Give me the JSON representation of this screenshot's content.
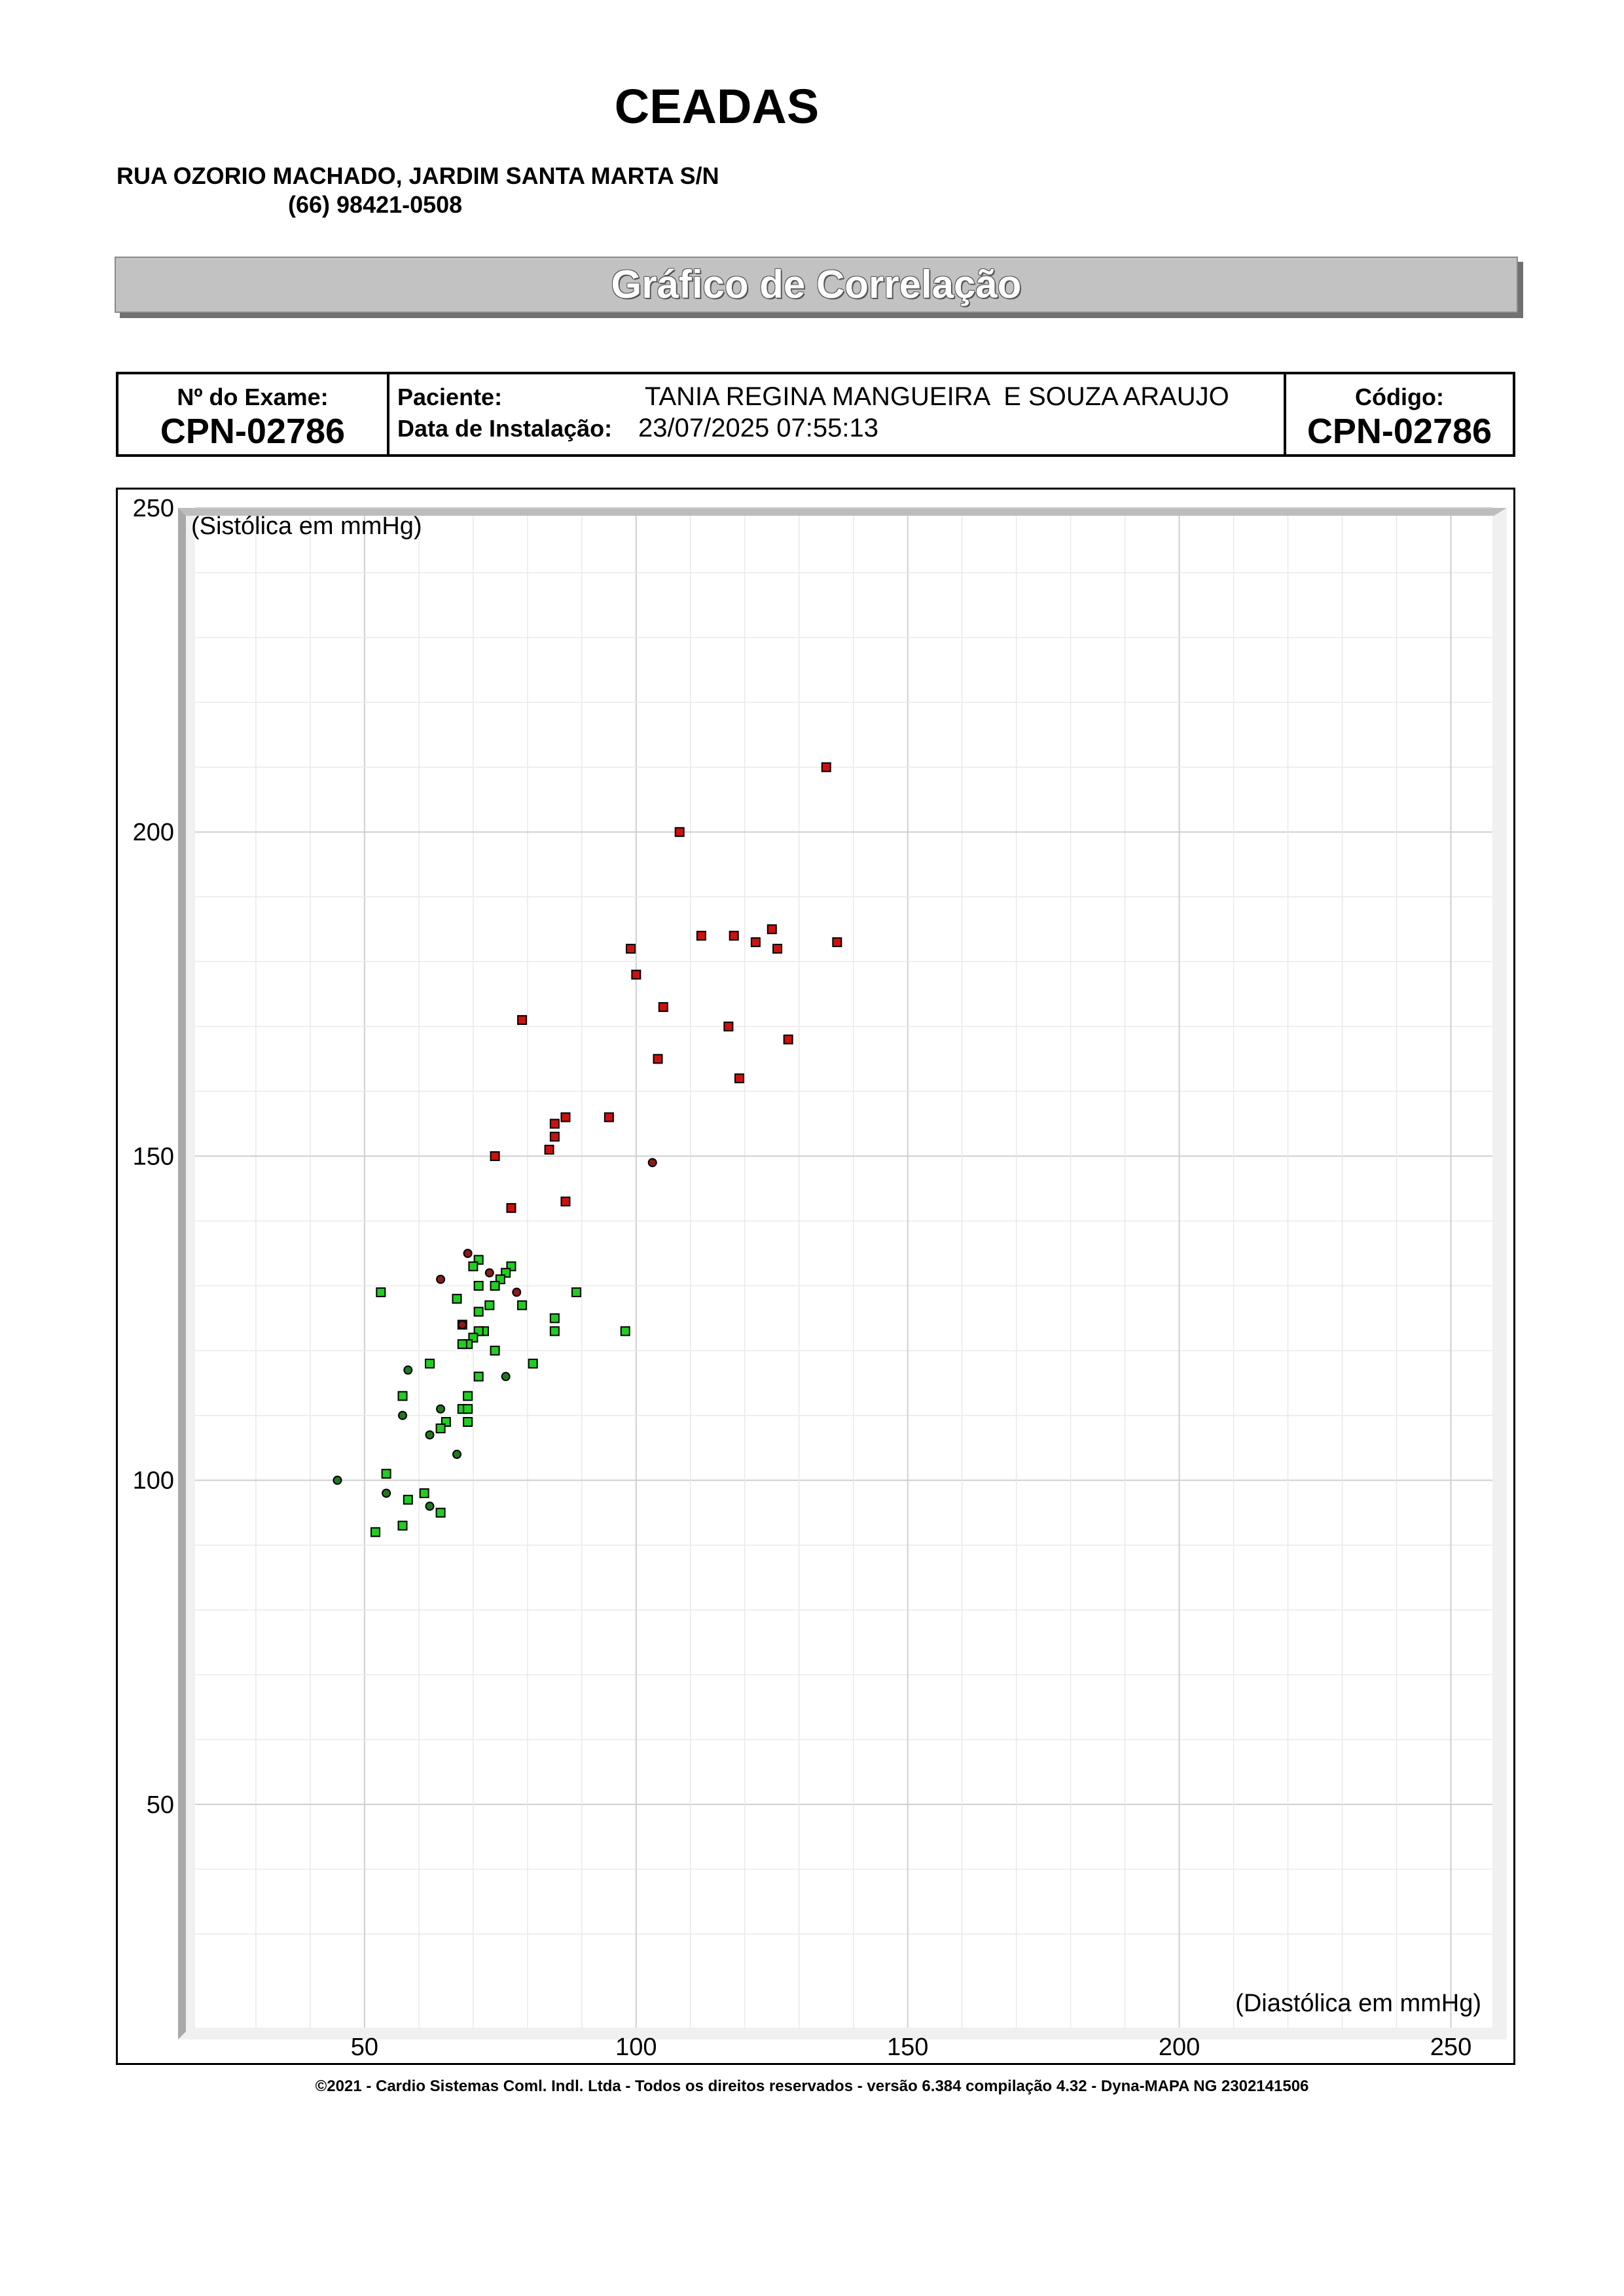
{
  "header": {
    "clinic_name": "CEADAS",
    "address": "RUA OZORIO MACHADO, JARDIM SANTA MARTA S/N",
    "phone": "(66) 98421-0508"
  },
  "title": "Gráfico de Correlação",
  "exam": {
    "exam_label": "Nº do Exame:",
    "exam_number": "CPN-02786",
    "patient_label": "Paciente:",
    "patient_name": "TANIA REGINA MANGUEIRA  E SOUZA ARAUJO",
    "install_label": "Data de Instalação:",
    "install_date": "23/07/2025 07:55:13",
    "code_label": "Código:",
    "code_value": "CPN-02786"
  },
  "colors": {
    "high_red": "#cc1111",
    "normal_green": "#22cc22",
    "dark_red": "#8b1a1a",
    "dark_green": "#1f7a1f"
  },
  "chart_data": {
    "type": "scatter",
    "ylabel": "(Sistólica em mmHg)",
    "xlabel": "(Diastólica em mmHg)",
    "xlim": [
      20,
      255
    ],
    "ylim": [
      20,
      250
    ],
    "x_ticks": [
      50,
      100,
      150,
      200,
      250
    ],
    "y_ticks": [
      50,
      100,
      150,
      200,
      250
    ],
    "grid": true,
    "series": [
      {
        "marker": "square",
        "color": "#cc1111",
        "points": [
          [
            135,
            210
          ],
          [
            108,
            200
          ],
          [
            112,
            184
          ],
          [
            118,
            184
          ],
          [
            125,
            185
          ],
          [
            122,
            183
          ],
          [
            126,
            182
          ],
          [
            137,
            183
          ],
          [
            99,
            182
          ],
          [
            100,
            178
          ],
          [
            105,
            173
          ],
          [
            79,
            171
          ],
          [
            117,
            170
          ],
          [
            128,
            168
          ],
          [
            104,
            165
          ],
          [
            119,
            162
          ],
          [
            87,
            156
          ],
          [
            95,
            156
          ],
          [
            85,
            155
          ],
          [
            85,
            153
          ],
          [
            84,
            151
          ],
          [
            74,
            150
          ],
          [
            77,
            142
          ],
          [
            87,
            143
          ]
        ]
      },
      {
        "marker": "square",
        "color": "#22cc22",
        "points": [
          [
            53,
            129
          ],
          [
            71,
            134
          ],
          [
            77,
            133
          ],
          [
            70,
            133
          ],
          [
            76,
            132
          ],
          [
            75,
            131
          ],
          [
            71,
            130
          ],
          [
            74,
            130
          ],
          [
            89,
            129
          ],
          [
            67,
            128
          ],
          [
            79,
            127
          ],
          [
            73,
            127
          ],
          [
            71,
            126
          ],
          [
            85,
            125
          ],
          [
            68,
            124
          ],
          [
            85,
            123
          ],
          [
            72,
            123
          ],
          [
            71,
            123
          ],
          [
            98,
            123
          ],
          [
            70,
            122
          ],
          [
            69,
            121
          ],
          [
            68,
            121
          ],
          [
            74,
            120
          ],
          [
            62,
            118
          ],
          [
            81,
            118
          ],
          [
            71,
            116
          ],
          [
            57,
            113
          ],
          [
            69,
            113
          ],
          [
            68,
            111
          ],
          [
            69,
            111
          ],
          [
            65,
            109
          ],
          [
            69,
            109
          ],
          [
            64,
            108
          ],
          [
            54,
            101
          ],
          [
            61,
            98
          ],
          [
            58,
            97
          ],
          [
            64,
            95
          ],
          [
            57,
            93
          ],
          [
            52,
            92
          ]
        ]
      },
      {
        "marker": "circle",
        "color": "#8b1a1a",
        "points": [
          [
            103,
            149
          ],
          [
            69,
            135
          ],
          [
            73,
            132
          ],
          [
            64,
            131
          ],
          [
            78,
            129
          ],
          [
            68,
            124
          ]
        ]
      },
      {
        "marker": "circle",
        "color": "#1f7a1f",
        "points": [
          [
            58,
            117
          ],
          [
            76,
            116
          ],
          [
            64,
            111
          ],
          [
            57,
            110
          ],
          [
            62,
            107
          ],
          [
            67,
            104
          ],
          [
            45,
            100
          ],
          [
            54,
            98
          ],
          [
            62,
            96
          ]
        ]
      }
    ]
  },
  "footer": "©2021 - Cardio Sistemas Coml. Indl. Ltda - Todos os direitos reservados - versão 6.384 compilação 4.32 - Dyna-MAPA NG 2302141506"
}
